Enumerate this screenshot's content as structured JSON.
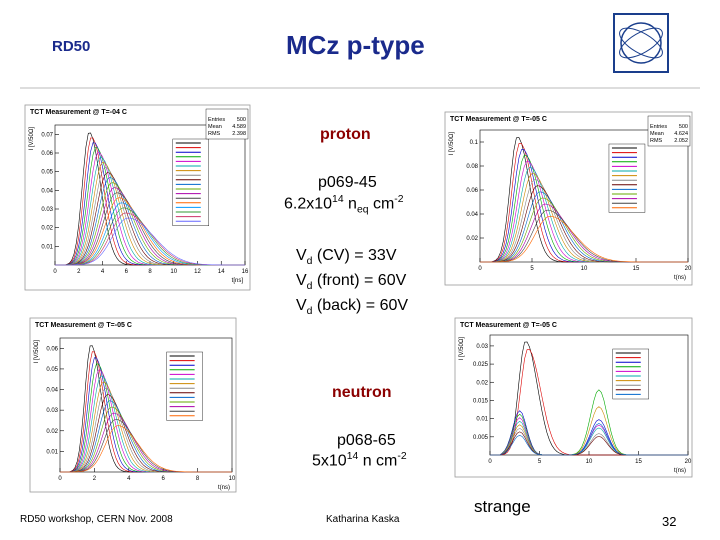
{
  "header": {
    "left": "RD50",
    "title": "MCz p-type"
  },
  "proton": {
    "label": "proton",
    "sample": "p069-45",
    "fluence": {
      "base": "6.2x10",
      "exp": "14",
      "n": " n",
      "sub": "eq",
      "unit": " cm",
      "exp2": "-2"
    },
    "vd": [
      {
        "v": "V",
        "sub": "d",
        "rest": " (CV) = 33V"
      },
      {
        "v": "V",
        "sub": "d",
        "rest": " (front) = 60V"
      },
      {
        "v": "V",
        "sub": "d",
        "rest": " (back) = 60V"
      }
    ]
  },
  "neutron": {
    "label": "neutron",
    "sample": "p068-65",
    "fluence": {
      "base": "5x10",
      "exp": "14",
      "unit": " n cm",
      "exp2": "-2"
    }
  },
  "note": "strange",
  "footer": {
    "left": "RD50 workshop, CERN Nov. 2008",
    "center": "Katharina Kaska",
    "page": "32"
  },
  "plots": [
    {
      "title": "TCT Measurement @ T=-04 C",
      "stats": [
        [
          "Entries",
          "500"
        ],
        [
          "Mean",
          "4.589"
        ],
        [
          "RMS",
          "2.398"
        ]
      ],
      "ylabel": "I [V/50Ω]",
      "xlabel": "t[ns]",
      "xlim": [
        0,
        16
      ],
      "ylim": [
        0,
        0.075
      ],
      "xticks": [
        0,
        2,
        4,
        6,
        8,
        10,
        12,
        14,
        16
      ],
      "yticks": [
        0.01,
        0.02,
        0.03,
        0.04,
        0.05,
        0.06,
        0.07
      ]
    },
    {
      "title": "TCT Measurement @ T=-05 C",
      "stats": [
        [
          "Entries",
          "500"
        ],
        [
          "Mean",
          "4.624"
        ],
        [
          "RMS",
          "2.052"
        ]
      ],
      "ylabel": "I [V/50Ω]",
      "xlabel": "t(ns)",
      "xlim": [
        0,
        20
      ],
      "ylim": [
        0,
        0.11
      ],
      "xticks": [
        0,
        5,
        10,
        15,
        20
      ],
      "yticks": [
        0.02,
        0.04,
        0.06,
        0.08,
        0.1
      ]
    },
    {
      "title": "TCT Measurement @ T=-05 C",
      "ylabel": "I [V/50Ω]",
      "xlabel": "t(ns)",
      "xlim": [
        0,
        10
      ],
      "ylim": [
        0,
        0.065
      ],
      "xticks": [
        0,
        2,
        4,
        6,
        8,
        10
      ],
      "yticks": [
        0.01,
        0.02,
        0.03,
        0.04,
        0.05,
        0.06
      ]
    },
    {
      "title": "TCT Measurement @ T=-05 C",
      "ylabel": "I [V/50Ω]",
      "xlabel": "t(ns)",
      "xlim": [
        0,
        20
      ],
      "ylim": [
        0,
        0.033
      ],
      "xticks": [
        0,
        5,
        10,
        15,
        20
      ],
      "yticks": [
        0.005,
        0.01,
        0.015,
        0.02,
        0.025,
        0.03
      ]
    }
  ]
}
